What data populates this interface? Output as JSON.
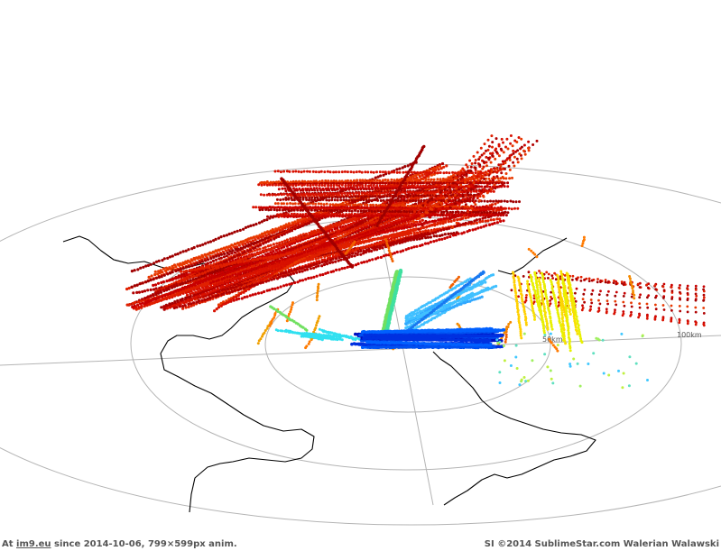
{
  "scene": {
    "range_labels": [
      "100km",
      "50km"
    ]
  },
  "footer": {
    "prefix": "At ",
    "link_text": "im9.eu",
    "suffix": " since 2014-10-06, 799×599px anim.",
    "credit": "SI ©2014 SublimeStar.com Walerian Walawski"
  }
}
